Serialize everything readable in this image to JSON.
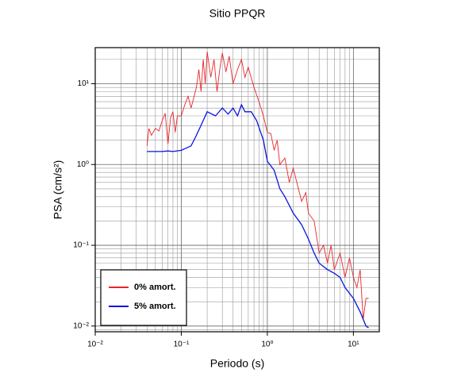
{
  "chart_data": {
    "type": "line",
    "title": "Sitio PPQR",
    "xlabel": "Periodo (s)",
    "ylabel": "PSA (cm/s²)",
    "xscale": "log",
    "yscale": "log",
    "grid": true,
    "legend": "lower left",
    "xlim": [
      0.01,
      20
    ],
    "ylim": [
      0.0085,
      28
    ],
    "xticks": [
      {
        "value": 0.01,
        "label": "10⁻²"
      },
      {
        "value": 0.1,
        "label": "10⁻¹"
      },
      {
        "value": 1,
        "label": "10⁰"
      },
      {
        "value": 10,
        "label": "10¹"
      }
    ],
    "yticks": [
      {
        "value": 0.01,
        "label": "10⁻²"
      },
      {
        "value": 0.1,
        "label": "10⁻¹"
      },
      {
        "value": 1,
        "label": "10⁰"
      },
      {
        "value": 10,
        "label": "10¹"
      }
    ],
    "series": [
      {
        "name": "0% amort.",
        "color": "#e8262b",
        "x": [
          0.04,
          0.042,
          0.045,
          0.05,
          0.055,
          0.06,
          0.065,
          0.07,
          0.075,
          0.08,
          0.085,
          0.09,
          0.1,
          0.11,
          0.12,
          0.13,
          0.15,
          0.16,
          0.17,
          0.18,
          0.19,
          0.2,
          0.22,
          0.24,
          0.26,
          0.28,
          0.3,
          0.33,
          0.36,
          0.4,
          0.45,
          0.5,
          0.55,
          0.6,
          0.7,
          0.8,
          0.9,
          1.0,
          1.1,
          1.2,
          1.3,
          1.4,
          1.6,
          1.8,
          2.0,
          2.3,
          2.5,
          2.8,
          3.0,
          3.5,
          4.0,
          4.5,
          5,
          5.5,
          6,
          7,
          8,
          9,
          10,
          11,
          12,
          13,
          14,
          15
        ],
        "values": [
          1.7,
          2.8,
          2.3,
          2.8,
          2.6,
          3.5,
          4.3,
          1.8,
          3.8,
          4.5,
          2.5,
          4,
          4,
          5.5,
          7,
          5,
          9,
          15,
          8,
          20,
          10,
          25,
          12,
          20,
          8,
          15,
          24,
          14,
          22,
          10,
          15,
          20,
          12,
          16,
          9,
          6,
          4,
          2.5,
          2.4,
          1.5,
          2,
          1,
          1.2,
          0.6,
          0.9,
          0.5,
          0.35,
          0.45,
          0.25,
          0.2,
          0.08,
          0.1,
          0.06,
          0.1,
          0.05,
          0.08,
          0.04,
          0.07,
          0.04,
          0.03,
          0.05,
          0.012,
          0.022,
          0.022
        ]
      },
      {
        "name": "5% amort.",
        "color": "#0a14e0",
        "x": [
          0.04,
          0.05,
          0.06,
          0.07,
          0.08,
          0.1,
          0.13,
          0.15,
          0.18,
          0.2,
          0.25,
          0.3,
          0.35,
          0.4,
          0.45,
          0.5,
          0.55,
          0.65,
          0.75,
          0.9,
          1.0,
          1.2,
          1.4,
          1.6,
          2.0,
          2.5,
          3,
          3.5,
          4,
          5,
          6,
          7,
          8,
          10,
          12,
          14,
          15
        ],
        "values": [
          1.45,
          1.45,
          1.45,
          1.47,
          1.45,
          1.5,
          1.7,
          2.3,
          3.5,
          4.5,
          4,
          5,
          4.2,
          5,
          4,
          5.5,
          4.5,
          4.5,
          3.5,
          2,
          1.1,
          0.85,
          0.5,
          0.4,
          0.25,
          0.18,
          0.12,
          0.08,
          0.06,
          0.05,
          0.045,
          0.04,
          0.03,
          0.022,
          0.015,
          0.01,
          0.0095
        ]
      }
    ]
  }
}
